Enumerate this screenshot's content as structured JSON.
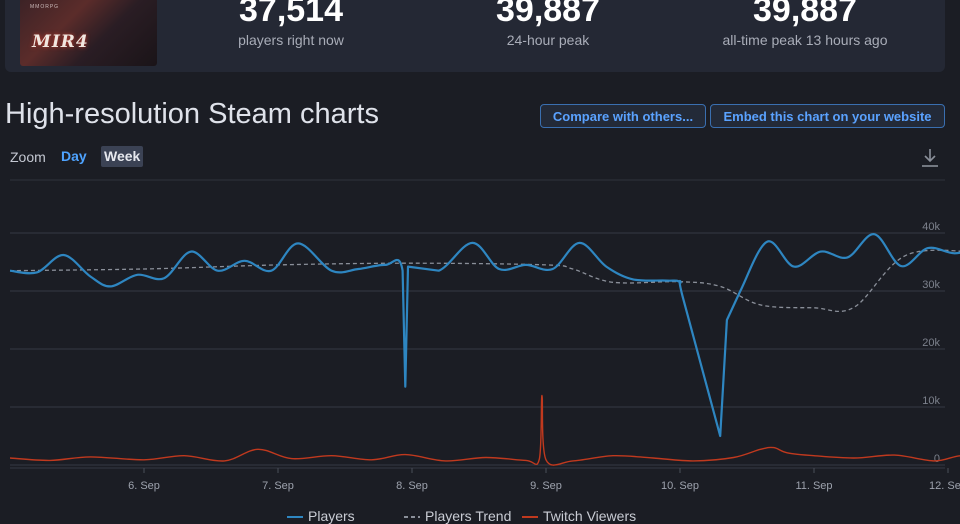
{
  "game": {
    "logo_text": "MIR4",
    "logo_subtext": "MMORPG"
  },
  "stats": [
    {
      "value": "37,514",
      "label": "players right now"
    },
    {
      "value": "39,887",
      "label": "24-hour peak"
    },
    {
      "value": "39,887",
      "label": "all-time peak 13 hours ago"
    }
  ],
  "section_title": "High-resolution Steam charts",
  "buttons": {
    "compare": "Compare with others...",
    "embed": "Embed this chart on your website"
  },
  "zoom": {
    "label": "Zoom",
    "options": [
      "Day",
      "Week"
    ],
    "active": "Day",
    "highlighted": "Week"
  },
  "icons": {
    "download": "download-icon"
  },
  "colors": {
    "players": "#2e86c1",
    "trend": "#8a8f99",
    "twitch": "#c0391e",
    "accent": "#4ea3ff"
  },
  "chart_data": {
    "type": "line",
    "x_tick_labels": [
      "6. Sep",
      "7. Sep",
      "8. Sep",
      "9. Sep",
      "10. Sep",
      "11. Sep",
      "12. Sep"
    ],
    "y_tick_labels": [
      "0",
      "10k",
      "20k",
      "30k",
      "40k"
    ],
    "ylim": [
      0,
      40000
    ],
    "grid": true,
    "legend_position": "bottom",
    "series": [
      {
        "name": "Players",
        "x": [
          5.0,
          5.2,
          5.4,
          5.6,
          5.75,
          5.95,
          6.15,
          6.35,
          6.55,
          6.75,
          6.95,
          7.15,
          7.4,
          7.6,
          7.8,
          7.93,
          7.95,
          7.97,
          8.2,
          8.45,
          8.65,
          8.85,
          9.05,
          9.25,
          9.45,
          9.65,
          9.9,
          10.0,
          10.02,
          10.3,
          10.35,
          10.45,
          10.65,
          10.85,
          11.05,
          11.25,
          11.45,
          11.65,
          11.85,
          12.05,
          12.25
        ],
        "y": [
          33500,
          33200,
          36200,
          32500,
          30800,
          32800,
          32200,
          36800,
          33500,
          35200,
          33500,
          38200,
          33500,
          33800,
          34500,
          33500,
          13500,
          34200,
          33500,
          38300,
          33800,
          34500,
          33800,
          38300,
          34200,
          32000,
          31800,
          31500,
          29000,
          5000,
          25000,
          30000,
          38500,
          34200,
          36800,
          35800,
          39800,
          34300,
          37400,
          36500,
          37500
        ]
      },
      {
        "name": "Players Trend",
        "x": [
          5.0,
          6.0,
          7.0,
          8.0,
          9.0,
          9.2,
          9.5,
          10.0,
          10.3,
          10.6,
          11.0,
          11.3,
          11.7,
          12.3
        ],
        "y": [
          33500,
          33800,
          34500,
          34800,
          34500,
          33800,
          31500,
          31600,
          30800,
          27600,
          27100,
          27200,
          36300,
          36500
        ]
      },
      {
        "name": "Twitch Viewers",
        "x": [
          5.0,
          5.3,
          5.6,
          6.0,
          6.3,
          6.6,
          6.85,
          7.1,
          7.4,
          7.7,
          7.95,
          8.25,
          8.55,
          8.85,
          8.95,
          8.97,
          9.0,
          9.2,
          9.5,
          9.8,
          10.1,
          10.4,
          10.6,
          10.7,
          10.8,
          11.0,
          11.3,
          11.6,
          11.9,
          12.1,
          12.3
        ],
        "y": [
          1200,
          800,
          1400,
          900,
          1600,
          700,
          2700,
          1100,
          1600,
          900,
          1800,
          700,
          1300,
          800,
          1000,
          12000,
          900,
          700,
          1600,
          1200,
          700,
          1300,
          2700,
          3000,
          2100,
          1600,
          1200,
          1700,
          700,
          1600,
          800
        ]
      }
    ]
  }
}
